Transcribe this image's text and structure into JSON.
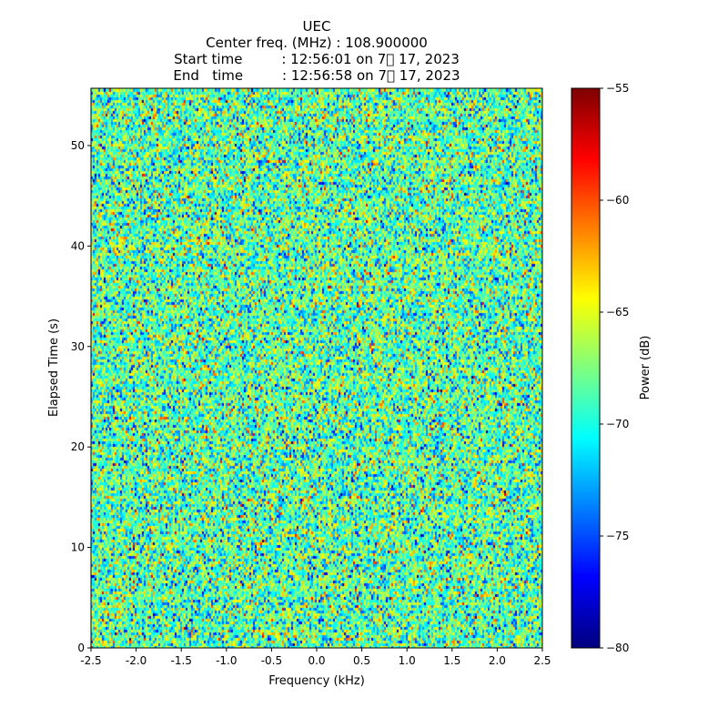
{
  "chart_data": {
    "type": "heatmap",
    "title_lines": [
      "UEC",
      "Center freq. (MHz) : 108.900000",
      "Start time         : 12:56:01 on 7\u0000 17, 2023",
      "End   time         : 12:56:58 on 7\u0000 17, 2023"
    ],
    "xlabel": "Frequency (kHz)",
    "ylabel": "Elapsed Time (s)",
    "xlim": [
      -2.5,
      2.5
    ],
    "ylim": [
      0,
      55.7
    ],
    "xticks": [
      "-2.5",
      "-2.0",
      "-1.5",
      "-1.0",
      "-0.5",
      "0.0",
      "0.5",
      "1.0",
      "1.5",
      "2.0",
      "2.5"
    ],
    "xtick_values": [
      -2.5,
      -2.0,
      -1.5,
      -1.0,
      -0.5,
      0.0,
      0.5,
      1.0,
      1.5,
      2.0,
      2.5
    ],
    "yticks": [
      "0",
      "10",
      "20",
      "30",
      "40",
      "50"
    ],
    "ytick_values": [
      0,
      10,
      20,
      30,
      40,
      50
    ],
    "colormap": "jet",
    "colorbar": {
      "label": "Power (dB)",
      "vmin": -80,
      "vmax": -55,
      "ticks": [
        "−80",
        "−75",
        "−70",
        "−65",
        "−60",
        "−55"
      ],
      "tick_values": [
        -80,
        -75,
        -70,
        -65,
        -60,
        -55
      ]
    },
    "noise": {
      "freq_bins": 248,
      "time_bins": 205,
      "mean_db": -68.5,
      "std_db": 3.6,
      "seed": 12345
    }
  }
}
